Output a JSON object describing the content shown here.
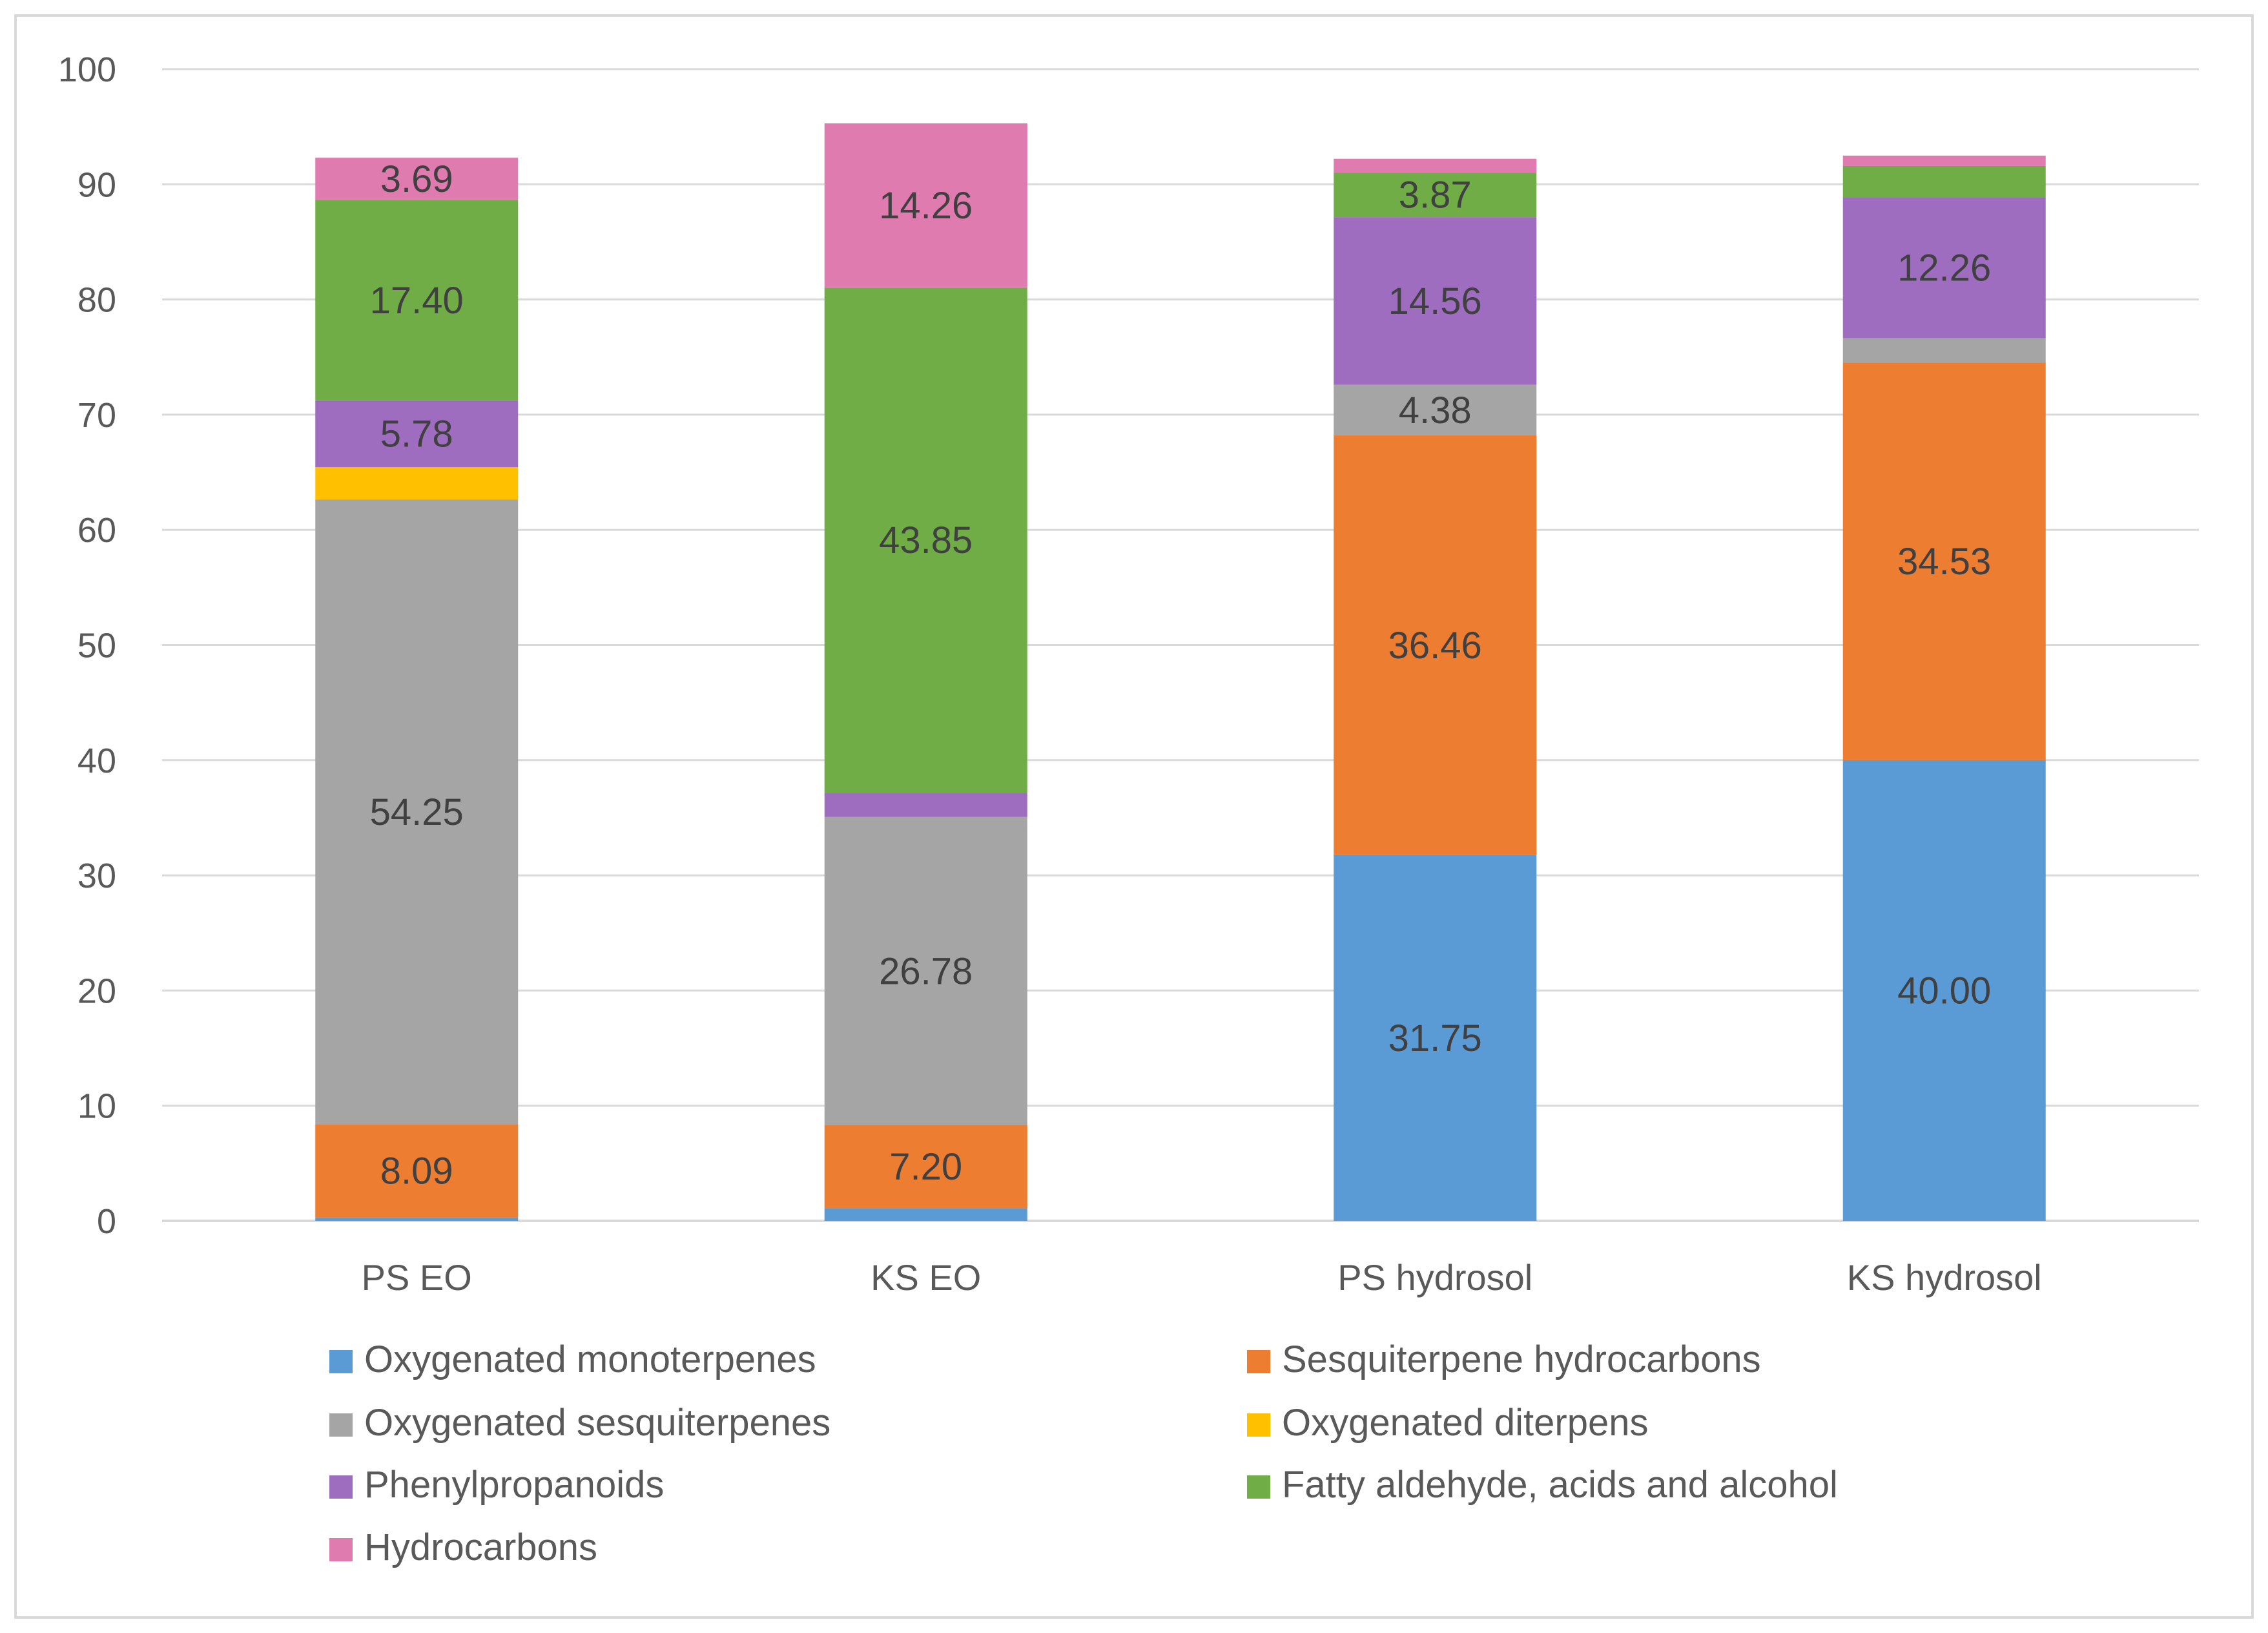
{
  "chart_data": {
    "type": "bar",
    "stacked": true,
    "title": "",
    "xlabel": "",
    "ylabel": "",
    "ylim": [
      0,
      100
    ],
    "yticks": [
      0,
      10,
      20,
      30,
      40,
      50,
      60,
      70,
      80,
      90,
      100
    ],
    "grid": true,
    "legend_position": "bottom",
    "categories": [
      "PS EO",
      "KS EO",
      "PS hydrosol",
      "KS hydrosol"
    ],
    "series": [
      {
        "name": "Oxygenated monoterpenes",
        "color": "#5B9BD5",
        "values": [
          0.3,
          1.1,
          31.75,
          40.0
        ],
        "labels": [
          null,
          null,
          "31.75",
          "40.00"
        ]
      },
      {
        "name": "Sesquiterpene hydrocarbons",
        "color": "#ED7D31",
        "values": [
          8.09,
          7.2,
          36.46,
          34.53
        ],
        "labels": [
          "8.09",
          "7.20",
          "36.46",
          "34.53"
        ]
      },
      {
        "name": "Oxygenated sesquiterpenes",
        "color": "#A5A5A5",
        "values": [
          54.25,
          26.78,
          4.38,
          2.1
        ],
        "labels": [
          "54.25",
          "26.78",
          "4.38",
          null
        ]
      },
      {
        "name": "Oxygenated diterpens",
        "color": "#FFC000",
        "values": [
          2.8,
          0,
          0,
          0
        ],
        "labels": [
          null,
          null,
          null,
          null
        ]
      },
      {
        "name": "Phenylpropanoids",
        "color": "#9E6DC0",
        "values": [
          5.78,
          2.1,
          14.56,
          12.26
        ],
        "labels": [
          "5.78",
          null,
          "14.56",
          "12.26"
        ]
      },
      {
        "name": "Fatty aldehyde, acids and alcohol",
        "color": "#70AD47",
        "values": [
          17.4,
          43.85,
          3.87,
          2.7
        ],
        "labels": [
          "17.40",
          "43.85",
          "3.87",
          null
        ]
      },
      {
        "name": "Hydrocarbons",
        "color": "#E07BB0",
        "values": [
          3.69,
          14.26,
          1.2,
          0.9
        ],
        "labels": [
          "3.69",
          "14.26",
          null,
          null
        ]
      }
    ]
  }
}
